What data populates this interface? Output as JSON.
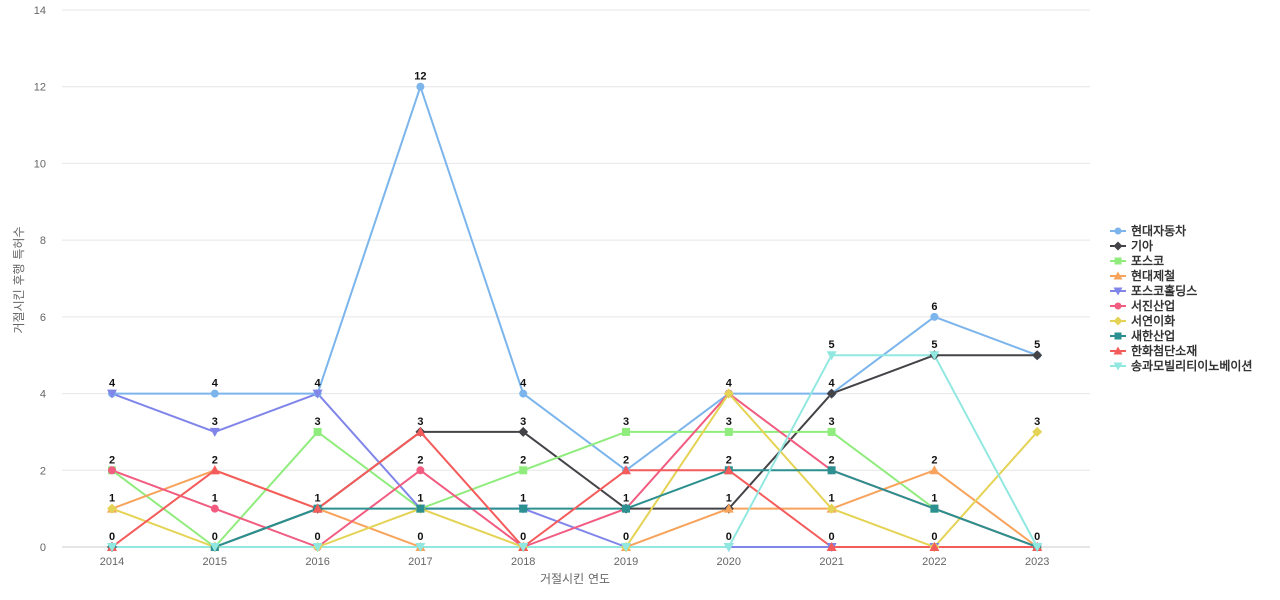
{
  "chart_data": {
    "type": "line",
    "title": "",
    "xlabel": "거절시킨 연도",
    "ylabel": "거절시킨 후행 특허수",
    "x": [
      "2014",
      "2015",
      "2016",
      "2017",
      "2018",
      "2019",
      "2020",
      "2021",
      "2022",
      "2023"
    ],
    "ylim": [
      0,
      14
    ],
    "yticks": [
      0,
      2,
      4,
      6,
      8,
      10,
      12,
      14
    ],
    "grid": true,
    "legend_position": "right",
    "series": [
      {
        "name": "현대자동차",
        "color": "#7cb5ec",
        "marker": "circle",
        "values": [
          4,
          4,
          4,
          12,
          4,
          2,
          4,
          4,
          6,
          5
        ]
      },
      {
        "name": "기아",
        "color": "#434348",
        "marker": "diamond",
        "values": [
          0,
          0,
          1,
          3,
          3,
          1,
          1,
          4,
          5,
          5
        ]
      },
      {
        "name": "포스코",
        "color": "#90ed7d",
        "marker": "square",
        "values": [
          2,
          0,
          3,
          1,
          2,
          3,
          3,
          3,
          1,
          0
        ]
      },
      {
        "name": "현대제철",
        "color": "#f7a35c",
        "marker": "triangle",
        "values": [
          1,
          2,
          1,
          0,
          0,
          0,
          1,
          1,
          2,
          0
        ]
      },
      {
        "name": "포스코홀딩스",
        "color": "#8085e9",
        "marker": "triangle-down",
        "values": [
          4,
          3,
          4,
          1,
          1,
          0,
          0,
          0,
          0,
          0
        ]
      },
      {
        "name": "서진산업",
        "color": "#f15c80",
        "marker": "circle",
        "values": [
          2,
          1,
          0,
          2,
          0,
          1,
          4,
          2,
          1,
          0
        ]
      },
      {
        "name": "서연이화",
        "color": "#e4d354",
        "marker": "diamond",
        "values": [
          1,
          0,
          0,
          1,
          0,
          0,
          4,
          1,
          0,
          3
        ]
      },
      {
        "name": "새한산업",
        "color": "#2b908f",
        "marker": "square",
        "values": [
          0,
          0,
          1,
          1,
          1,
          1,
          2,
          2,
          1,
          0
        ]
      },
      {
        "name": "한화첨단소재",
        "color": "#f45b5b",
        "marker": "triangle",
        "values": [
          0,
          2,
          1,
          3,
          0,
          2,
          2,
          0,
          0,
          0
        ]
      },
      {
        "name": "송과모빌리티이노베이션",
        "color": "#91e8e1",
        "marker": "triangle-down",
        "values": [
          0,
          0,
          0,
          0,
          0,
          0,
          0,
          5,
          5,
          0
        ]
      }
    ],
    "data_labels": [
      {
        "x": "2014",
        "label": "4"
      },
      {
        "x": "2014",
        "label": "2"
      },
      {
        "x": "2014",
        "label": "1"
      },
      {
        "x": "2014",
        "label": "0"
      },
      {
        "x": "2015",
        "label": "4"
      },
      {
        "x": "2015",
        "label": "3"
      },
      {
        "x": "2015",
        "label": "2"
      },
      {
        "x": "2015",
        "label": "1"
      },
      {
        "x": "2015",
        "label": "0"
      },
      {
        "x": "2016",
        "label": "4"
      },
      {
        "x": "2016",
        "label": "3"
      },
      {
        "x": "2016",
        "label": "1"
      },
      {
        "x": "2016",
        "label": "0"
      },
      {
        "x": "2017",
        "label": "12"
      },
      {
        "x": "2017",
        "label": "3"
      },
      {
        "x": "2017",
        "label": "2"
      },
      {
        "x": "2017",
        "label": "1"
      },
      {
        "x": "2017",
        "label": "0"
      },
      {
        "x": "2018",
        "label": "4"
      },
      {
        "x": "2018",
        "label": "3"
      },
      {
        "x": "2018",
        "label": "2"
      },
      {
        "x": "2018",
        "label": "1"
      },
      {
        "x": "2018",
        "label": "0"
      },
      {
        "x": "2019",
        "label": "3"
      },
      {
        "x": "2019",
        "label": "2"
      },
      {
        "x": "2019",
        "label": "1"
      },
      {
        "x": "2019",
        "label": "0"
      },
      {
        "x": "2020",
        "label": "4"
      },
      {
        "x": "2020",
        "label": "3"
      },
      {
        "x": "2020",
        "label": "2"
      },
      {
        "x": "2020",
        "label": "1"
      },
      {
        "x": "2020",
        "label": "0"
      },
      {
        "x": "2021",
        "label": "5"
      },
      {
        "x": "2021",
        "label": "4"
      },
      {
        "x": "2021",
        "label": "3"
      },
      {
        "x": "2021",
        "label": "2"
      },
      {
        "x": "2021",
        "label": "1"
      },
      {
        "x": "2021",
        "label": "0"
      },
      {
        "x": "2022",
        "label": "6"
      },
      {
        "x": "2022",
        "label": "5"
      },
      {
        "x": "2022",
        "label": "2"
      },
      {
        "x": "2022",
        "label": "1"
      },
      {
        "x": "2022",
        "label": "0"
      },
      {
        "x": "2023",
        "label": "5"
      },
      {
        "x": "2023",
        "label": "3"
      },
      {
        "x": "2023",
        "label": "0"
      }
    ]
  }
}
